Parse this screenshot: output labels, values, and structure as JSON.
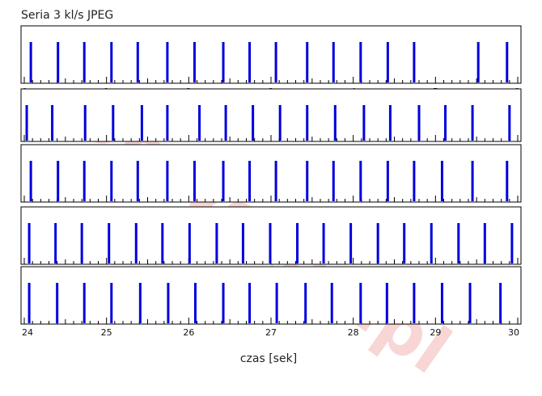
{
  "chart_data": {
    "type": "bar",
    "title": "Seria 3 kl/s JPEG",
    "xlabel": "czas [sek]",
    "ylabel": "",
    "watermark": "Optyczne.pl",
    "rows": [
      {
        "xlim": [
          0,
          6
        ],
        "ticks": [
          0,
          1,
          2,
          3,
          4,
          5,
          6
        ],
        "frames": [
          0.08,
          0.41,
          0.73,
          1.06,
          1.38,
          1.74,
          2.07,
          2.42,
          2.74,
          3.06,
          3.44,
          3.76,
          4.09,
          4.42,
          4.74,
          5.52,
          5.87
        ]
      },
      {
        "xlim": [
          6,
          12
        ],
        "ticks": [
          6,
          7,
          8,
          9,
          10,
          11,
          12
        ],
        "frames": [
          6.03,
          6.34,
          6.74,
          7.08,
          7.43,
          7.74,
          8.13,
          8.45,
          8.78,
          9.11,
          9.44,
          9.78,
          10.13,
          10.45,
          10.8,
          11.12,
          11.45,
          11.9
        ]
      },
      {
        "xlim": [
          12,
          18
        ],
        "ticks": [
          12,
          13,
          14,
          15,
          16,
          17,
          18
        ],
        "frames": [
          12.08,
          12.41,
          12.73,
          13.06,
          13.38,
          13.74,
          14.07,
          14.42,
          14.74,
          15.06,
          15.44,
          15.76,
          16.09,
          16.42,
          16.74,
          17.08,
          17.45,
          17.87
        ]
      },
      {
        "xlim": [
          18,
          24
        ],
        "ticks": [
          18,
          19,
          20,
          21,
          22,
          23,
          24
        ],
        "frames": [
          18.06,
          18.38,
          18.7,
          19.03,
          19.36,
          19.68,
          20.01,
          20.34,
          20.66,
          20.99,
          21.32,
          21.64,
          21.97,
          22.3,
          22.62,
          22.95,
          23.28,
          23.6,
          23.93
        ]
      },
      {
        "xlim": [
          24,
          30
        ],
        "ticks": [
          24,
          25,
          26,
          27,
          28,
          29,
          30
        ],
        "frames": [
          24.06,
          24.4,
          24.73,
          25.06,
          25.41,
          25.75,
          26.08,
          26.42,
          26.74,
          27.07,
          27.42,
          27.74,
          28.09,
          28.41,
          28.74,
          29.08,
          29.42,
          29.79
        ]
      }
    ],
    "colors": {
      "frame": "#0000dd",
      "minor": "#000000",
      "frame_border": "#000000"
    }
  }
}
